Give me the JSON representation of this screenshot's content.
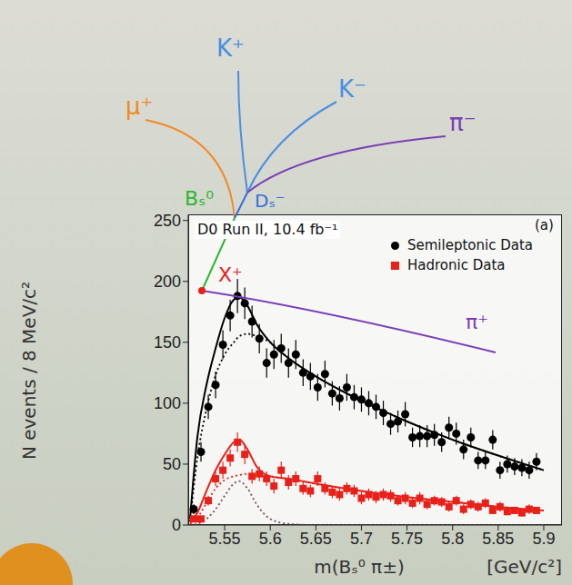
{
  "chart_data": {
    "type": "scatter",
    "title": "D0 Run II, 10.4 fb⁻¹",
    "panel_label": "(a)",
    "x_label": "m(Bₛ⁰ π±)",
    "x_unit_label": "[GeV/c²]",
    "y_label": "N events / 8 MeV/c²",
    "xlim": [
      5.51,
      5.92
    ],
    "xticks": [
      5.55,
      5.6,
      5.65,
      5.7,
      5.75,
      5.8,
      5.85,
      5.9
    ],
    "ylim": [
      0,
      255
    ],
    "yticks": [
      0,
      50,
      100,
      150,
      200,
      250
    ],
    "grid": false,
    "legend": "upper right",
    "x": [
      5.516,
      5.524,
      5.532,
      5.54,
      5.548,
      5.556,
      5.564,
      5.572,
      5.58,
      5.588,
      5.596,
      5.604,
      5.612,
      5.62,
      5.628,
      5.636,
      5.644,
      5.652,
      5.66,
      5.668,
      5.676,
      5.684,
      5.692,
      5.7,
      5.708,
      5.716,
      5.724,
      5.732,
      5.74,
      5.748,
      5.756,
      5.764,
      5.772,
      5.78,
      5.788,
      5.796,
      5.804,
      5.812,
      5.82,
      5.828,
      5.836,
      5.844,
      5.852,
      5.86,
      5.868,
      5.876,
      5.884,
      5.892
    ],
    "series": [
      {
        "name": "Semileptonic Data",
        "type": "scatter",
        "color": "#000000",
        "marker": "circle",
        "values": [
          13,
          60,
          97,
          115,
          148,
          172,
          188,
          182,
          167,
          153,
          133,
          140,
          145,
          133,
          140,
          125,
          122,
          113,
          124,
          108,
          104,
          113,
          105,
          103,
          100,
          97,
          92,
          83,
          85,
          91,
          72,
          73,
          73,
          74,
          68,
          80,
          75,
          62,
          72,
          53,
          53,
          70,
          45,
          50,
          48,
          47,
          45,
          52
        ],
        "errors": [
          4,
          8,
          10,
          11,
          12,
          13,
          14,
          13,
          13,
          12,
          12,
          12,
          12,
          12,
          12,
          11,
          11,
          11,
          11,
          10,
          10,
          11,
          10,
          10,
          10,
          10,
          10,
          9,
          9,
          10,
          8,
          9,
          9,
          9,
          8,
          9,
          9,
          8,
          8,
          7,
          7,
          8,
          7,
          7,
          7,
          7,
          7,
          7
        ]
      },
      {
        "name": "Hadronic Data",
        "type": "scatter",
        "color": "#e8201a",
        "marker": "square",
        "values": [
          5,
          5,
          20,
          38,
          45,
          55,
          68,
          58,
          40,
          42,
          38,
          32,
          45,
          35,
          38,
          30,
          28,
          38,
          30,
          27,
          25,
          30,
          28,
          22,
          25,
          23,
          25,
          24,
          20,
          22,
          18,
          22,
          17,
          20,
          19,
          15,
          20,
          13,
          17,
          15,
          18,
          12,
          15,
          11,
          12,
          10,
          13,
          12
        ],
        "errors": [
          2,
          2,
          4,
          6,
          7,
          7,
          8,
          8,
          6,
          6,
          6,
          6,
          7,
          6,
          6,
          5,
          5,
          6,
          5,
          5,
          5,
          5,
          5,
          5,
          5,
          5,
          5,
          5,
          4,
          5,
          4,
          5,
          4,
          4,
          4,
          4,
          4,
          4,
          4,
          4,
          4,
          3,
          4,
          3,
          3,
          3,
          4,
          3
        ]
      }
    ],
    "fits": {
      "x": [
        5.512,
        5.52,
        5.53,
        5.54,
        5.55,
        5.56,
        5.566,
        5.575,
        5.585,
        5.6,
        5.62,
        5.65,
        5.7,
        5.75,
        5.8,
        5.85,
        5.9
      ],
      "series": [
        {
          "type": "line",
          "color": "#000000",
          "line_style": "solid",
          "values": [
            5,
            72,
            115,
            145,
            170,
            185,
            187,
            180,
            165,
            150,
            137,
            122,
            102,
            85,
            70,
            57,
            45
          ]
        },
        {
          "type": "line",
          "color": "#000000",
          "line_style": "dotted",
          "values": [
            3,
            55,
            95,
            123,
            140,
            150,
            155,
            157,
            155,
            150,
            137,
            122,
            102,
            85,
            70,
            57,
            45
          ]
        },
        {
          "type": "line",
          "color": "#e8201a",
          "line_style": "solid",
          "values": [
            2,
            10,
            28,
            45,
            58,
            68,
            70,
            62,
            48,
            40,
            38,
            34,
            28,
            23,
            19,
            15,
            12
          ]
        },
        {
          "type": "line",
          "color": "#e8201a",
          "line_style": "dotted",
          "values": [
            1,
            6,
            18,
            30,
            37,
            40,
            41,
            42,
            41,
            40,
            38,
            34,
            28,
            23,
            19,
            15,
            12
          ]
        },
        {
          "type": "line",
          "color": "#7a5050",
          "line_style": "dotted",
          "values": [
            0,
            1,
            5,
            13,
            24,
            34,
            36,
            30,
            17,
            5,
            1,
            0,
            0,
            0,
            0,
            0,
            0
          ]
        }
      ]
    },
    "annotations": [
      {
        "text": "K⁺",
        "color": "#4a8fe0"
      },
      {
        "text": "K⁻",
        "color": "#4a8fe0"
      },
      {
        "text": "μ⁺",
        "color": "#f08a24"
      },
      {
        "text": "π⁻",
        "color": "#7a3fb5"
      },
      {
        "text": "Dₛ⁻",
        "color": "#2f6fe0"
      },
      {
        "text": "Bₛ⁰",
        "color": "#2db52d"
      },
      {
        "text": "X⁺",
        "color": "#e8201a"
      },
      {
        "text": "π⁺",
        "color": "#7a3fb5"
      }
    ]
  }
}
